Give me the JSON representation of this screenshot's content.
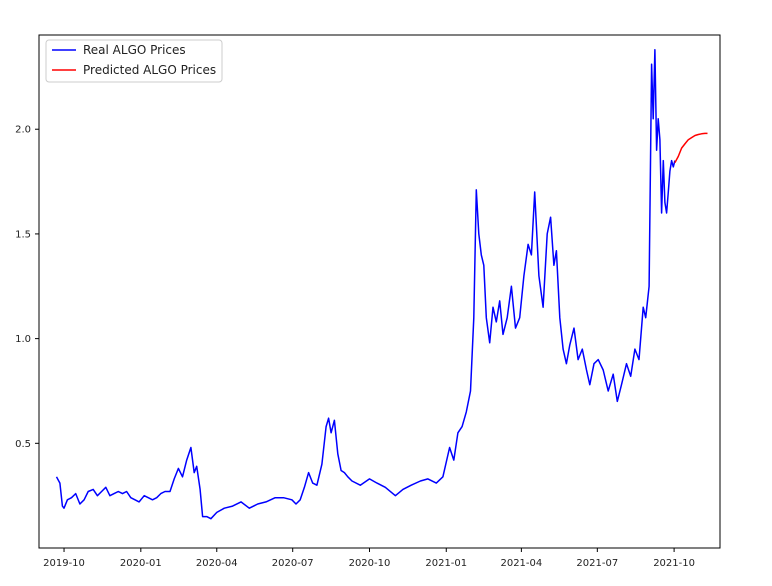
{
  "chart_data": {
    "type": "line",
    "title": "",
    "xlabel": "",
    "ylabel": "",
    "xlim": [
      "2019-09-01",
      "2021-11-25"
    ],
    "ylim": [
      0.0,
      2.45
    ],
    "grid": false,
    "legend_position": "top-left",
    "x_ticks": [
      "2019-10",
      "2020-01",
      "2020-04",
      "2020-07",
      "2020-10",
      "2021-01",
      "2021-04",
      "2021-07",
      "2021-10"
    ],
    "y_ticks": [
      "0.5",
      "1.0",
      "1.5",
      "2.0"
    ],
    "series": [
      {
        "name": "Real ALGO Prices",
        "color": "#0000ff",
        "x": [
          "2019-09-22",
          "2019-09-26",
          "2019-09-29",
          "2019-10-01",
          "2019-10-05",
          "2019-10-10",
          "2019-10-15",
          "2019-10-20",
          "2019-10-25",
          "2019-10-30",
          "2019-11-05",
          "2019-11-10",
          "2019-11-15",
          "2019-11-20",
          "2019-11-25",
          "2019-11-30",
          "2019-12-05",
          "2019-12-10",
          "2019-12-15",
          "2019-12-20",
          "2019-12-25",
          "2019-12-30",
          "2020-01-05",
          "2020-01-10",
          "2020-01-15",
          "2020-01-20",
          "2020-01-25",
          "2020-01-30",
          "2020-02-05",
          "2020-02-10",
          "2020-02-15",
          "2020-02-20",
          "2020-02-25",
          "2020-03-01",
          "2020-03-05",
          "2020-03-08",
          "2020-03-12",
          "2020-03-15",
          "2020-03-20",
          "2020-03-25",
          "2020-04-01",
          "2020-04-10",
          "2020-04-20",
          "2020-04-30",
          "2020-05-10",
          "2020-05-20",
          "2020-05-30",
          "2020-06-10",
          "2020-06-20",
          "2020-06-30",
          "2020-07-05",
          "2020-07-10",
          "2020-07-15",
          "2020-07-20",
          "2020-07-25",
          "2020-07-30",
          "2020-08-05",
          "2020-08-10",
          "2020-08-13",
          "2020-08-16",
          "2020-08-20",
          "2020-08-24",
          "2020-08-28",
          "2020-09-01",
          "2020-09-05",
          "2020-09-10",
          "2020-09-20",
          "2020-10-01",
          "2020-10-10",
          "2020-10-20",
          "2020-11-01",
          "2020-11-10",
          "2020-11-20",
          "2020-12-01",
          "2020-12-10",
          "2020-12-20",
          "2020-12-28",
          "2021-01-05",
          "2021-01-10",
          "2021-01-15",
          "2021-01-20",
          "2021-01-25",
          "2021-01-30",
          "2021-02-03",
          "2021-02-06",
          "2021-02-09",
          "2021-02-12",
          "2021-02-15",
          "2021-02-18",
          "2021-02-22",
          "2021-02-26",
          "2021-03-02",
          "2021-03-06",
          "2021-03-10",
          "2021-03-15",
          "2021-03-20",
          "2021-03-25",
          "2021-03-30",
          "2021-04-04",
          "2021-04-09",
          "2021-04-13",
          "2021-04-17",
          "2021-04-22",
          "2021-04-27",
          "2021-05-02",
          "2021-05-06",
          "2021-05-10",
          "2021-05-13",
          "2021-05-17",
          "2021-05-21",
          "2021-05-25",
          "2021-05-29",
          "2021-06-03",
          "2021-06-08",
          "2021-06-13",
          "2021-06-18",
          "2021-06-22",
          "2021-06-27",
          "2021-07-02",
          "2021-07-08",
          "2021-07-14",
          "2021-07-20",
          "2021-07-25",
          "2021-07-30",
          "2021-08-05",
          "2021-08-10",
          "2021-08-15",
          "2021-08-20",
          "2021-08-25",
          "2021-08-28",
          "2021-09-01",
          "2021-09-04",
          "2021-09-06",
          "2021-09-08",
          "2021-09-10",
          "2021-09-12",
          "2021-09-14",
          "2021-09-16",
          "2021-09-18",
          "2021-09-20",
          "2021-09-22",
          "2021-09-24",
          "2021-09-26",
          "2021-09-28",
          "2021-09-30",
          "2021-10-02"
        ],
        "values": [
          0.34,
          0.31,
          0.2,
          0.19,
          0.23,
          0.24,
          0.26,
          0.21,
          0.23,
          0.27,
          0.28,
          0.25,
          0.27,
          0.29,
          0.25,
          0.26,
          0.27,
          0.26,
          0.27,
          0.24,
          0.23,
          0.22,
          0.25,
          0.24,
          0.23,
          0.24,
          0.26,
          0.27,
          0.27,
          0.33,
          0.38,
          0.34,
          0.42,
          0.48,
          0.36,
          0.39,
          0.28,
          0.15,
          0.15,
          0.14,
          0.17,
          0.19,
          0.2,
          0.22,
          0.19,
          0.21,
          0.22,
          0.24,
          0.24,
          0.23,
          0.21,
          0.23,
          0.29,
          0.36,
          0.31,
          0.3,
          0.4,
          0.58,
          0.62,
          0.55,
          0.61,
          0.45,
          0.37,
          0.36,
          0.34,
          0.32,
          0.3,
          0.33,
          0.31,
          0.29,
          0.25,
          0.28,
          0.3,
          0.32,
          0.33,
          0.31,
          0.34,
          0.48,
          0.42,
          0.55,
          0.58,
          0.65,
          0.75,
          1.1,
          1.71,
          1.5,
          1.4,
          1.35,
          1.1,
          0.98,
          1.15,
          1.08,
          1.18,
          1.02,
          1.1,
          1.25,
          1.05,
          1.1,
          1.3,
          1.45,
          1.4,
          1.7,
          1.3,
          1.15,
          1.5,
          1.58,
          1.35,
          1.42,
          1.1,
          0.95,
          0.88,
          0.97,
          1.05,
          0.9,
          0.95,
          0.85,
          0.78,
          0.88,
          0.9,
          0.85,
          0.75,
          0.83,
          0.7,
          0.78,
          0.88,
          0.82,
          0.95,
          0.9,
          1.15,
          1.1,
          1.25,
          2.31,
          2.05,
          2.38,
          1.9,
          2.05,
          1.95,
          1.6,
          1.85,
          1.65,
          1.6,
          1.7,
          1.8,
          1.85,
          1.82,
          1.85
        ]
      },
      {
        "name": "Predicted ALGO Prices",
        "color": "#ff0000",
        "x": [
          "2021-10-02",
          "2021-10-06",
          "2021-10-10",
          "2021-10-14",
          "2021-10-18",
          "2021-10-22",
          "2021-10-26",
          "2021-10-30",
          "2021-11-03",
          "2021-11-07",
          "2021-11-10"
        ],
        "values": [
          1.84,
          1.87,
          1.91,
          1.93,
          1.95,
          1.96,
          1.97,
          1.975,
          1.978,
          1.98,
          1.98
        ]
      }
    ]
  }
}
